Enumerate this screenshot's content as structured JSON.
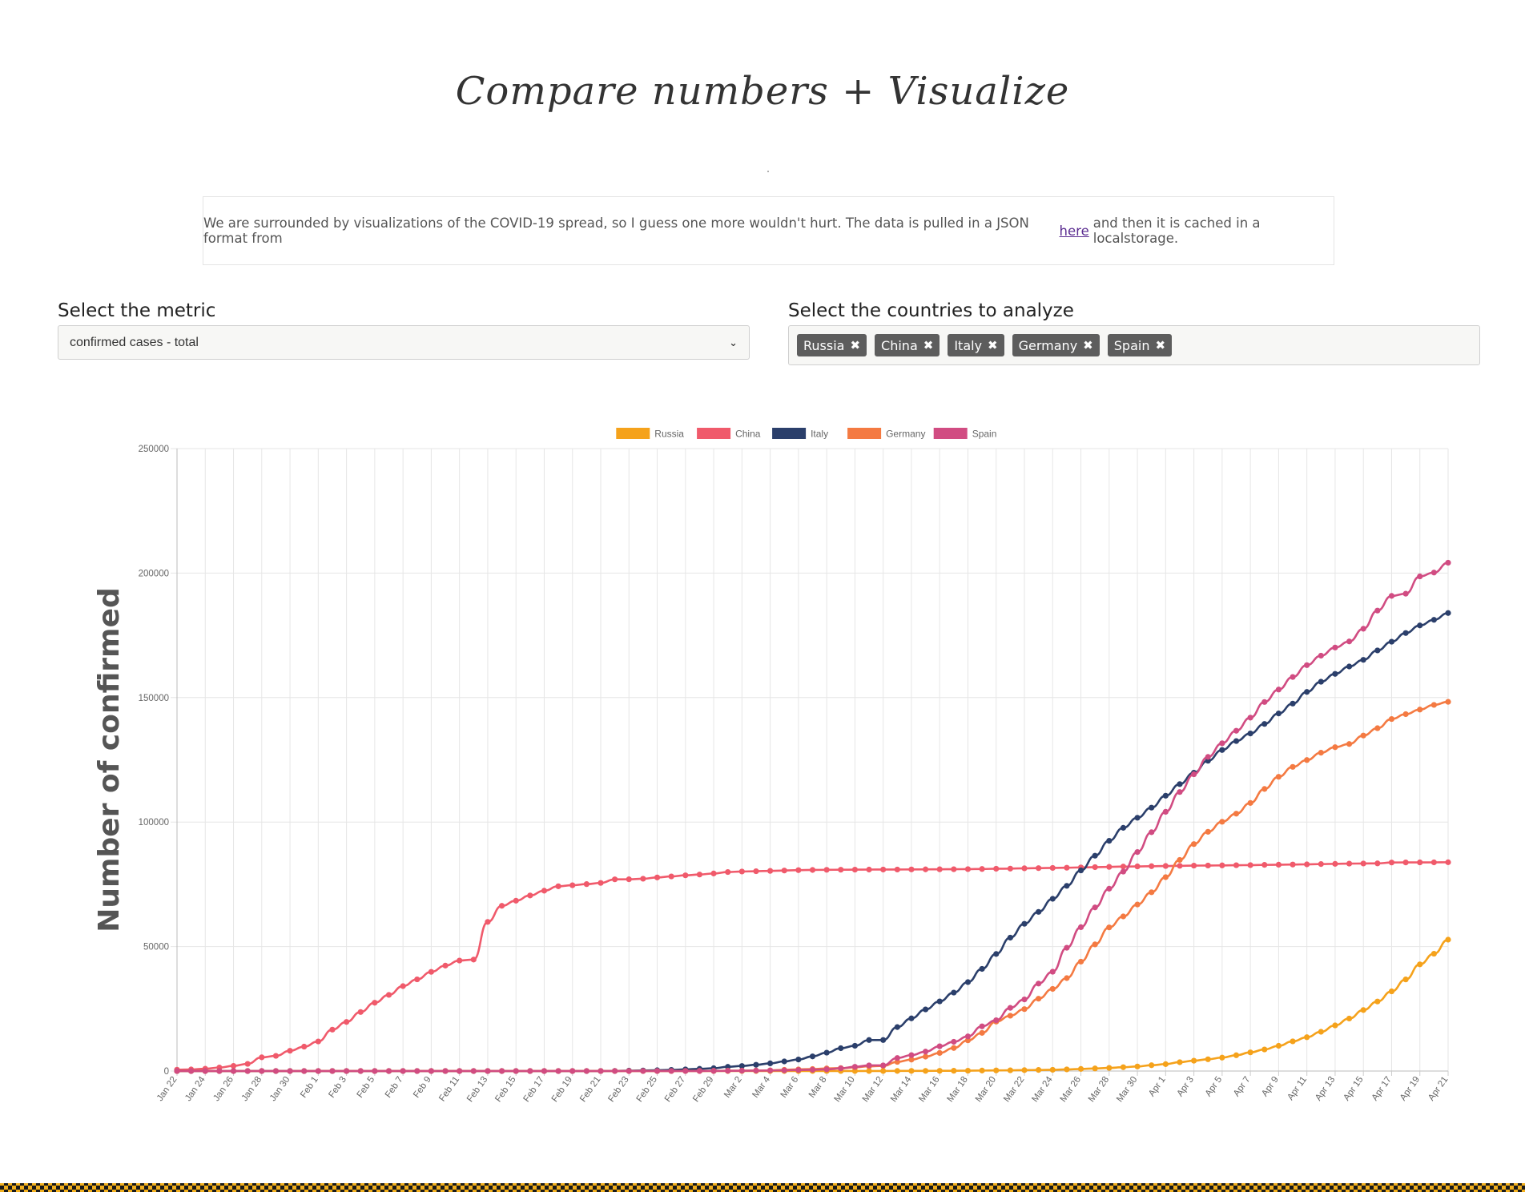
{
  "header": {
    "title": "Compare numbers + Visualize"
  },
  "intro": {
    "text_before": "We are surrounded by visualizations of the COVID-19 spread, so I guess one more wouldn't hurt. The data is pulled in a JSON format from",
    "link_label": "here",
    "text_after": "and then it is cached in a localstorage."
  },
  "metric": {
    "label": "Select the metric",
    "selected": "confirmed cases - total"
  },
  "countries": {
    "label": "Select the countries to analyze",
    "selected": [
      "Russia",
      "China",
      "Italy",
      "Germany",
      "Spain"
    ],
    "remove_glyph": "✖"
  },
  "chart_data": {
    "type": "line",
    "ylabel": "Number of confirmed",
    "xlabel": "",
    "ylim": [
      0,
      250000
    ],
    "yticks": [
      0,
      50000,
      100000,
      150000,
      200000,
      250000
    ],
    "grid": true,
    "legend": "top-center",
    "x": [
      "Jan 22",
      "Jan 23",
      "Jan 24",
      "Jan 25",
      "Jan 26",
      "Jan 27",
      "Jan 28",
      "Jan 29",
      "Jan 30",
      "Jan 31",
      "Feb 1",
      "Feb 2",
      "Feb 3",
      "Feb 4",
      "Feb 5",
      "Feb 6",
      "Feb 7",
      "Feb 8",
      "Feb 9",
      "Feb 10",
      "Feb 11",
      "Feb 12",
      "Feb 13",
      "Feb 14",
      "Feb 15",
      "Feb 16",
      "Feb 17",
      "Feb 18",
      "Feb 19",
      "Feb 20",
      "Feb 21",
      "Feb 22",
      "Feb 23",
      "Feb 24",
      "Feb 25",
      "Feb 26",
      "Feb 27",
      "Feb 28",
      "Feb 29",
      "Mar 1",
      "Mar 2",
      "Mar 3",
      "Mar 4",
      "Mar 5",
      "Mar 6",
      "Mar 7",
      "Mar 8",
      "Mar 9",
      "Mar 10",
      "Mar 11",
      "Mar 12",
      "Mar 13",
      "Mar 14",
      "Mar 15",
      "Mar 16",
      "Mar 17",
      "Mar 18",
      "Mar 19",
      "Mar 20",
      "Mar 21",
      "Mar 22",
      "Mar 23",
      "Mar 24",
      "Mar 25",
      "Mar 26",
      "Mar 27",
      "Mar 28",
      "Mar 29",
      "Mar 30",
      "Mar 31",
      "Apr 1",
      "Apr 2",
      "Apr 3",
      "Apr 4",
      "Apr 5",
      "Apr 6",
      "Apr 7",
      "Apr 8",
      "Apr 9",
      "Apr 10",
      "Apr 11",
      "Apr 12",
      "Apr 13",
      "Apr 14",
      "Apr 15",
      "Apr 16",
      "Apr 17",
      "Apr 18",
      "Apr 19",
      "Apr 20",
      "Apr 21"
    ],
    "series": [
      {
        "name": "Russia",
        "color": "#f5a21b",
        "values": [
          0,
          0,
          0,
          0,
          0,
          0,
          0,
          0,
          0,
          2,
          2,
          2,
          2,
          2,
          2,
          2,
          2,
          2,
          2,
          2,
          2,
          2,
          2,
          2,
          2,
          2,
          2,
          2,
          2,
          2,
          2,
          2,
          2,
          2,
          2,
          2,
          2,
          2,
          2,
          2,
          3,
          3,
          3,
          4,
          4,
          13,
          17,
          17,
          17,
          20,
          28,
          45,
          59,
          63,
          90,
          114,
          147,
          199,
          253,
          306,
          367,
          438,
          495,
          658,
          840,
          1036,
          1264,
          1534,
          1836,
          2337,
          2777,
          3548,
          4149,
          4731,
          5389,
          6343,
          7497,
          8672,
          10131,
          11917,
          13584,
          15770,
          18328,
          21102,
          24490,
          27938,
          32008,
          36793,
          42853,
          47121,
          52763
        ]
      },
      {
        "name": "China",
        "color": "#f05a6b",
        "values": [
          548,
          643,
          920,
          1406,
          2075,
          2877,
          5509,
          6087,
          8141,
          9802,
          11891,
          16630,
          19716,
          23707,
          27440,
          30587,
          34110,
          36814,
          39829,
          42354,
          44386,
          44759,
          59895,
          66358,
          68413,
          70513,
          72434,
          74211,
          74619,
          75077,
          75550,
          77001,
          77022,
          77241,
          77754,
          78166,
          78600,
          78928,
          79356,
          79932,
          80136,
          80261,
          80386,
          80537,
          80690,
          80770,
          80823,
          80860,
          80887,
          80921,
          80932,
          80945,
          80977,
          81003,
          81033,
          81058,
          81102,
          81156,
          81250,
          81305,
          81435,
          81498,
          81591,
          81661,
          81782,
          81897,
          81999,
          82122,
          82198,
          82279,
          82361,
          82432,
          82511,
          82543,
          82602,
          82665,
          82718,
          82809,
          82883,
          82941,
          83014,
          83134,
          83213,
          83306,
          83356,
          83403,
          83760,
          83787,
          83805,
          83817,
          83853
        ]
      },
      {
        "name": "Italy",
        "color": "#2b3f6b",
        "values": [
          0,
          0,
          0,
          0,
          0,
          0,
          0,
          0,
          0,
          2,
          2,
          2,
          2,
          2,
          2,
          2,
          3,
          3,
          3,
          3,
          3,
          3,
          3,
          3,
          3,
          3,
          3,
          3,
          3,
          3,
          20,
          62,
          155,
          229,
          322,
          453,
          655,
          888,
          1128,
          1694,
          2036,
          2502,
          3089,
          3858,
          4636,
          5883,
          7375,
          9172,
          10149,
          12462,
          12462,
          17660,
          21157,
          24747,
          27980,
          31506,
          35713,
          41035,
          47021,
          53578,
          59138,
          63927,
          69176,
          74386,
          80589,
          86498,
          92472,
          97689,
          101739,
          105792,
          110574,
          115242,
          119827,
          124632,
          128948,
          132547,
          135586,
          139422,
          143626,
          147577,
          152271,
          156363,
          159516,
          162488,
          165155,
          168941,
          172434,
          175925,
          178972,
          181228,
          183957
        ]
      },
      {
        "name": "Germany",
        "color": "#f47a42",
        "values": [
          0,
          0,
          0,
          0,
          0,
          1,
          4,
          4,
          4,
          5,
          8,
          10,
          12,
          12,
          12,
          12,
          13,
          13,
          14,
          14,
          16,
          16,
          16,
          16,
          16,
          16,
          16,
          16,
          16,
          16,
          16,
          16,
          16,
          16,
          17,
          27,
          46,
          48,
          79,
          130,
          159,
          196,
          262,
          482,
          670,
          799,
          1040,
          1176,
          1457,
          1908,
          2078,
          3675,
          4585,
          5795,
          7272,
          9257,
          12327,
          15320,
          19848,
          22213,
          24873,
          29056,
          32986,
          37323,
          43938,
          50871,
          57695,
          62095,
          66885,
          71808,
          77872,
          84794,
          91159,
          96092,
          100123,
          103374,
          107663,
          113296,
          118181,
          122171,
          124908,
          127854,
          130072,
          131359,
          134753,
          137698,
          141397,
          143342,
          145184,
          147065,
          148291
        ]
      },
      {
        "name": "Spain",
        "color": "#d14c82",
        "values": [
          0,
          0,
          0,
          0,
          0,
          0,
          0,
          0,
          0,
          0,
          1,
          1,
          1,
          1,
          1,
          1,
          1,
          1,
          1,
          2,
          2,
          2,
          2,
          2,
          2,
          2,
          2,
          2,
          2,
          2,
          2,
          2,
          2,
          2,
          6,
          13,
          15,
          32,
          45,
          84,
          120,
          165,
          222,
          259,
          400,
          500,
          673,
          1073,
          1695,
          2277,
          2277,
          5232,
          6391,
          7798,
          9942,
          11748,
          13910,
          17963,
          20410,
          25374,
          28768,
          35136,
          39885,
          49515,
          57786,
          65719,
          73235,
          80110,
          87956,
          95923,
          104118,
          112065,
          119199,
          126168,
          131646,
          136675,
          141942,
          148220,
          153222,
          158273,
          163027,
          166831,
          170099,
          172541,
          177644,
          184948,
          190839,
          191726,
          198674,
          200210,
          204178
        ]
      }
    ]
  }
}
